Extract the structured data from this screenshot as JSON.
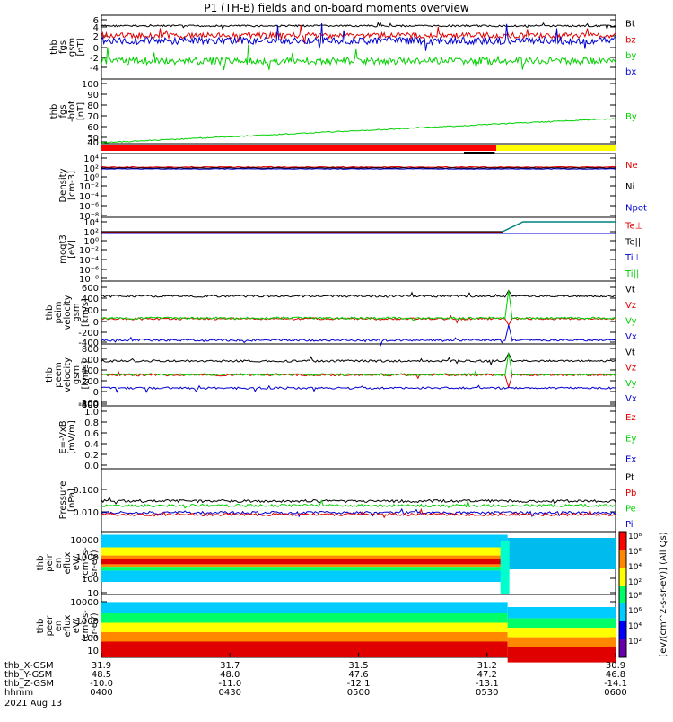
{
  "title": "P1 (TH-B) fields and on-board moments overview",
  "colors": {
    "black": "#000000",
    "red": "#e00000",
    "green": "#00d000",
    "blue": "#0000d0",
    "yellow": "#ffff00",
    "barRed": "#ff0000"
  },
  "chart_data": {
    "type": "line",
    "x_axis": {
      "rows": [
        {
          "label": "thb_X-GSM",
          "values": [
            "31.9",
            "31.7",
            "31.5",
            "31.2",
            "30.9"
          ]
        },
        {
          "label": "thb_Y-GSM",
          "values": [
            "48.5",
            "48.0",
            "47.6",
            "47.2",
            "46.8"
          ]
        },
        {
          "label": "thb_Z-GSM",
          "values": [
            "-10.0",
            "-11.0",
            "-12.1",
            "-13.1",
            "-14.1"
          ]
        },
        {
          "label": "hhmm",
          "values": [
            "0400",
            "0430",
            "0500",
            "0530",
            "0600"
          ]
        }
      ],
      "date": "2021 Aug 13"
    },
    "panels": [
      {
        "id": "fgs",
        "ylabel": [
          "thb",
          "fgs",
          "gsm",
          "[nT]"
        ],
        "ylim": [
          -6,
          6
        ],
        "ticks": [
          "6",
          "4",
          "2",
          "0",
          "-2",
          "-4"
        ],
        "legend": [
          {
            "name": "Bt",
            "color": "#000000"
          },
          {
            "name": "bz",
            "color": "#e00000"
          },
          {
            "name": "by",
            "color": "#00d000"
          },
          {
            "name": "bx",
            "color": "#0000d0"
          }
        ],
        "series": [
          {
            "name": "Bt",
            "level": 4.0
          },
          {
            "name": "bz",
            "level": 2.2
          },
          {
            "name": "by",
            "level": -2.6
          },
          {
            "name": "bx",
            "level": 1.2
          }
        ]
      },
      {
        "id": "fgs-btot",
        "ylabel": [
          "thb",
          "fgs",
          "-btot",
          "[nT]"
        ],
        "ylim": [
          33,
          100
        ],
        "ticks": [
          "100",
          "90",
          "80",
          "70",
          "60",
          "50",
          "40"
        ],
        "legend": [
          {
            "name": "By",
            "color": "#00d000"
          }
        ],
        "series": [
          {
            "name": "By",
            "from": 34,
            "to": 59
          }
        ]
      },
      {
        "id": "density",
        "ylabel": [
          "Density",
          "[cm-3]"
        ],
        "ticks": [
          "10⁴",
          "10²",
          "10⁰",
          "10⁻²",
          "10⁻⁴",
          "10⁻⁶",
          "10⁻⁸"
        ],
        "legend": [
          {
            "name": "Ne",
            "color": "#e00000"
          },
          {
            "name": "Ni",
            "color": "#000000"
          },
          {
            "name": "Npot",
            "color": "#0000d0"
          }
        ]
      },
      {
        "id": "temperature",
        "ylabel": [
          "moqt3",
          "[eV]"
        ],
        "ticks": [
          "10⁴",
          "10²",
          "10⁰",
          "10⁻²",
          "10⁻⁴",
          "10⁻⁶",
          "10⁻⁸"
        ],
        "legend": [
          {
            "name": "Te⊥",
            "color": "#e00000"
          },
          {
            "name": "Te||",
            "color": "#000000"
          },
          {
            "name": "Ti⊥",
            "color": "#0000d0"
          },
          {
            "name": "Ti||",
            "color": "#00d000"
          }
        ]
      },
      {
        "id": "peim",
        "ylabel": [
          "thb",
          "peim",
          "velocity",
          "gsm",
          "[km/s]"
        ],
        "ylim": [
          -400,
          600
        ],
        "ticks": [
          "600",
          "400",
          "200",
          "0",
          "-200",
          "-400"
        ],
        "legend": [
          {
            "name": "Vt",
            "color": "#000000"
          },
          {
            "name": "Vz",
            "color": "#e00000"
          },
          {
            "name": "Vy",
            "color": "#00d000"
          },
          {
            "name": "Vx",
            "color": "#0000d0"
          }
        ],
        "series": [
          {
            "name": "Vt",
            "level": 360
          },
          {
            "name": "Vz",
            "level": 0
          },
          {
            "name": "Vy",
            "level": 10
          },
          {
            "name": "Vx",
            "level": -340
          }
        ]
      },
      {
        "id": "peem",
        "ylabel": [
          "thb",
          "peem",
          "velocity",
          "gsm",
          "[km/s]"
        ],
        "ylim": [
          -800,
          800
        ],
        "ticks": [
          "800",
          "600",
          "400",
          "200",
          "0",
          "-200",
          "-400",
          "-600",
          "-800"
        ],
        "legend": [
          {
            "name": "Vt",
            "color": "#000000"
          },
          {
            "name": "Vz",
            "color": "#e00000"
          },
          {
            "name": "Vy",
            "color": "#00d000"
          },
          {
            "name": "Vx",
            "color": "#0000d0"
          }
        ],
        "series": [
          {
            "name": "Vt",
            "level": 360
          },
          {
            "name": "Vz",
            "level": 0
          },
          {
            "name": "Vy",
            "level": 10
          },
          {
            "name": "Vx",
            "level": -340
          }
        ]
      },
      {
        "id": "efield",
        "ylabel": [
          "E=-VxB",
          "[mV/m]"
        ],
        "ylim": [
          0,
          1
        ],
        "ticks": [
          "1.0",
          "0.8",
          "0.6",
          "0.4",
          "0.2",
          "0.0"
        ],
        "legend": [
          {
            "name": "Ez",
            "color": "#e00000"
          },
          {
            "name": "Ey",
            "color": "#00d000"
          },
          {
            "name": "Ex",
            "color": "#0000d0"
          }
        ]
      },
      {
        "id": "pressure",
        "ylabel": [
          "Pressure",
          "[nPa]"
        ],
        "ticks": [
          "0.100",
          "0.010"
        ],
        "legend": [
          {
            "name": "Pt",
            "color": "#000000"
          },
          {
            "name": "Pb",
            "color": "#e00000"
          },
          {
            "name": "Pe",
            "color": "#00d000"
          },
          {
            "name": "Pi",
            "color": "#0000d0"
          }
        ]
      },
      {
        "id": "peir",
        "ylabel": [
          "thb",
          "peir",
          "en",
          "eflux",
          "eV/",
          "(cm²-s-",
          "sr-eV)"
        ],
        "ticks": [
          "10000",
          "1000",
          "100",
          "10"
        ]
      },
      {
        "id": "peer",
        "ylabel": [
          "thb",
          "peer",
          "en",
          "eflux",
          "eV/",
          "(cm²-s-",
          "sr-eV)"
        ],
        "ticks": [
          "10000",
          "1000",
          "100",
          "10"
        ]
      }
    ],
    "colorbar": {
      "label": "[eV/(cm^2-s-sr-eV)] (All Qs)",
      "ion_ticks": [
        "10⁸",
        "10⁶",
        "10⁴",
        "10²"
      ],
      "electron_ticks": [
        "10⁸",
        "10⁶",
        "10⁴",
        "10²"
      ]
    }
  }
}
